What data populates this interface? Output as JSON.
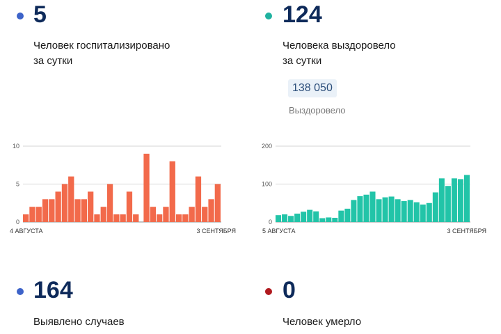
{
  "stats": {
    "hospitalized": {
      "number": "5",
      "line1": "Человек госпитализировано",
      "line2": "за сутки",
      "dot_color": "#3d63c9"
    },
    "recovered": {
      "number": "124",
      "line1": "Человека выздоровело",
      "line2": "за сутки",
      "total": "138 050",
      "total_label": "Выздоровело",
      "dot_color": "#20b2a0"
    },
    "cases": {
      "number": "164",
      "line1": "Выявлено случаев",
      "dot_color": "#3d63c9"
    },
    "deaths": {
      "number": "0",
      "line1": "Человек умерло",
      "dot_color": "#b0191e"
    }
  },
  "chart_data": [
    {
      "type": "bar",
      "color": "#f26a4b",
      "ylim": [
        0,
        10
      ],
      "yticks": [
        "0",
        "5",
        "10"
      ],
      "x_start_label": "4 АВГУСТА",
      "x_end_label": "3 СЕНТЯБРЯ",
      "values": [
        1,
        2,
        2,
        3,
        3,
        4,
        5,
        6,
        3,
        3,
        4,
        1,
        2,
        5,
        1,
        1,
        4,
        1,
        9,
        2,
        1,
        2,
        8,
        1,
        1,
        2,
        6,
        2,
        3,
        5
      ],
      "gap_after_index": 17
    },
    {
      "type": "bar",
      "color": "#22c4a8",
      "ylim": [
        0,
        200
      ],
      "yticks": [
        "0",
        "100",
        "200"
      ],
      "x_start_label": "5 АВГУСТА",
      "x_end_label": "3 СЕНТЯБРЯ",
      "values": [
        18,
        20,
        16,
        22,
        27,
        32,
        28,
        10,
        12,
        11,
        30,
        35,
        58,
        68,
        72,
        80,
        60,
        65,
        67,
        60,
        55,
        58,
        52,
        46,
        50,
        78,
        115,
        95,
        115,
        113,
        124
      ]
    }
  ]
}
